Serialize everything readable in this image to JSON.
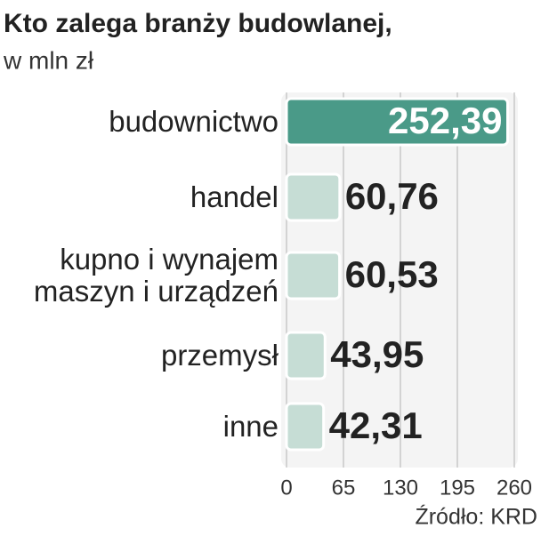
{
  "chart_data": {
    "type": "hbar",
    "title": "Kto zalega branży budowlanej,",
    "subtitle": "w mln zł",
    "categories": [
      "budownictwo",
      "handel",
      "kupno i wynajem\nmaszyn i urządzeń",
      "przemysł",
      "inne"
    ],
    "values": [
      252.39,
      60.76,
      60.53,
      43.95,
      42.31
    ],
    "value_labels": [
      "252,39",
      "60,76",
      "60,53",
      "43,95",
      "42,31"
    ],
    "colors": [
      "#4a9a88",
      "#c6ddd5",
      "#c6ddd5",
      "#c6ddd5",
      "#c6ddd5"
    ],
    "xlim": [
      0,
      260
    ],
    "xticks": [
      0,
      65,
      130,
      195,
      260
    ],
    "grid": true,
    "source": "Źródło: KRD"
  }
}
